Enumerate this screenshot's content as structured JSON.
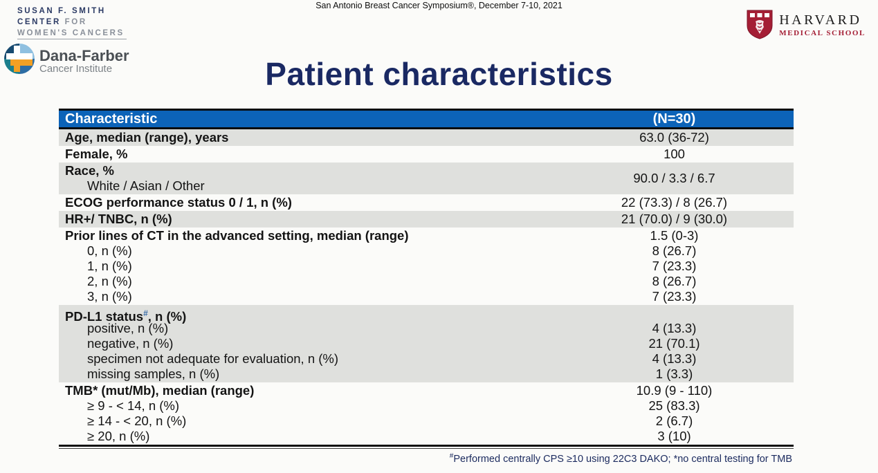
{
  "slide": {
    "symposium": "San Antonio Breast Cancer Symposium®, December 7-10, 2021",
    "title": "Patient characteristics"
  },
  "branding": {
    "susan_smith": {
      "line1": "SUSAN F. SMITH",
      "line2_strong": "CENTER",
      "line2_light": " FOR",
      "line3": "WOMEN'S CANCERS"
    },
    "dana_farber": {
      "name": "Dana-Farber",
      "subtitle": "Cancer Institute"
    },
    "harvard": {
      "name": "HARVARD",
      "subtitle": "MEDICAL SCHOOL"
    }
  },
  "table": {
    "header": {
      "characteristic": "Characteristic",
      "n": "(N=30)"
    },
    "rows": [
      {
        "shade": true,
        "label": "Age, median (range), years",
        "value": "63.0 (36-72)"
      },
      {
        "shade": false,
        "label": "Female, %",
        "value": "100"
      },
      {
        "shade": true,
        "label": "Race, %",
        "value": "90.0 / 3.3 / 6.7",
        "value_middle": true,
        "sublines": [
          {
            "label": "White / Asian / Other",
            "value": ""
          }
        ]
      },
      {
        "shade": false,
        "label": "ECOG performance status 0 / 1, n (%)",
        "value": "22 (73.3) / 8 (26.7)"
      },
      {
        "shade": true,
        "label": "HR+/ TNBC, n (%)",
        "value": "21 (70.0) / 9 (30.0)"
      },
      {
        "shade": false,
        "label": "Prior lines of CT in the advanced setting, median (range)",
        "value": "1.5 (0-3)",
        "sublines": [
          {
            "label": "0, n (%)",
            "value": "8 (26.7)"
          },
          {
            "label": "1, n (%)",
            "value": "7 (23.3)"
          },
          {
            "label": "2, n (%)",
            "value": "8 (26.7)"
          },
          {
            "label": "3, n (%)",
            "value": "7 (23.3)"
          }
        ]
      },
      {
        "shade": true,
        "label": "PD-L1 status",
        "label_sup": "#",
        "label_suffix": ", n (%)",
        "value": "",
        "sublines": [
          {
            "label": "positive, n (%)",
            "value": "4 (13.3)"
          },
          {
            "label": "negative, n (%)",
            "value": "21 (70.1)"
          },
          {
            "label": "specimen not adequate for evaluation, n (%)",
            "value": "4 (13.3)"
          },
          {
            "label": "missing samples, n (%)",
            "value": "1 (3.3)"
          }
        ]
      },
      {
        "shade": false,
        "label": "TMB* (mut/Mb), median (range)",
        "value": "10.9 (9 - 110)",
        "sublines": [
          {
            "label": "≥ 9 - < 14, n (%)",
            "value": "25 (83.3)"
          },
          {
            "label": "≥ 14 - < 20, n (%)",
            "value": "2 (6.7)"
          },
          {
            "label": "≥ 20, n (%)",
            "value": "3 (10)"
          }
        ]
      }
    ]
  },
  "footnote": {
    "sup": "#",
    "text": "Performed centrally CPS ≥10 using 22C3 DAKO; *no central testing for TMB"
  },
  "colors": {
    "header_blue": "#0c63b8",
    "row_gray": "#dfe0dd",
    "title_navy": "#1a2963",
    "footnote_navy": "#1b2a5e",
    "harvard_crimson": "#a41e35"
  }
}
